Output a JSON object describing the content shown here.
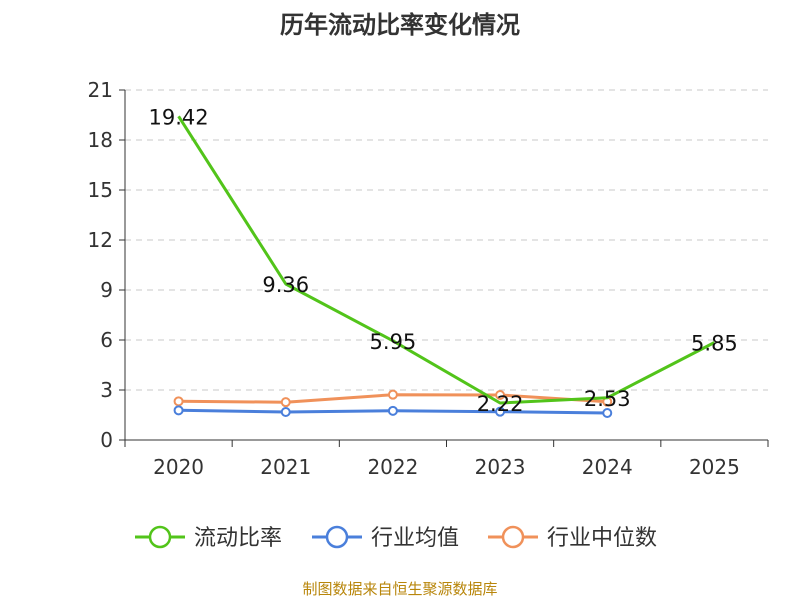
{
  "chart_data": {
    "type": "line",
    "title": "历年流动比率变化情况",
    "categories": [
      "2020",
      "2021",
      "2022",
      "2023",
      "2024",
      "2025"
    ],
    "ylim": [
      0,
      21
    ],
    "yticks": [
      "0",
      "3",
      "6",
      "9",
      "12",
      "15",
      "18",
      "21"
    ],
    "ytick_values": [
      0,
      3,
      6,
      9,
      12,
      15,
      18,
      21
    ],
    "grid": true,
    "legend_position": "bottom-center",
    "series": [
      {
        "name": "流动比率",
        "color": "#52c41a",
        "values": [
          19.42,
          9.36,
          5.95,
          2.22,
          2.53,
          5.85
        ],
        "labels": [
          "19.42",
          "9.36",
          "5.95",
          "2.22",
          "2.53",
          "5.85"
        ]
      },
      {
        "name": "行业均值",
        "color": "#4a7fdb",
        "values": [
          1.78,
          1.68,
          1.75,
          1.7,
          1.62,
          null
        ]
      },
      {
        "name": "行业中位数",
        "color": "#f0915a",
        "values": [
          2.32,
          2.27,
          2.72,
          2.7,
          2.3,
          null
        ]
      }
    ]
  },
  "footer": {
    "source": "制图数据来自恒生聚源数据库",
    "source_color": "#b8860b"
  }
}
